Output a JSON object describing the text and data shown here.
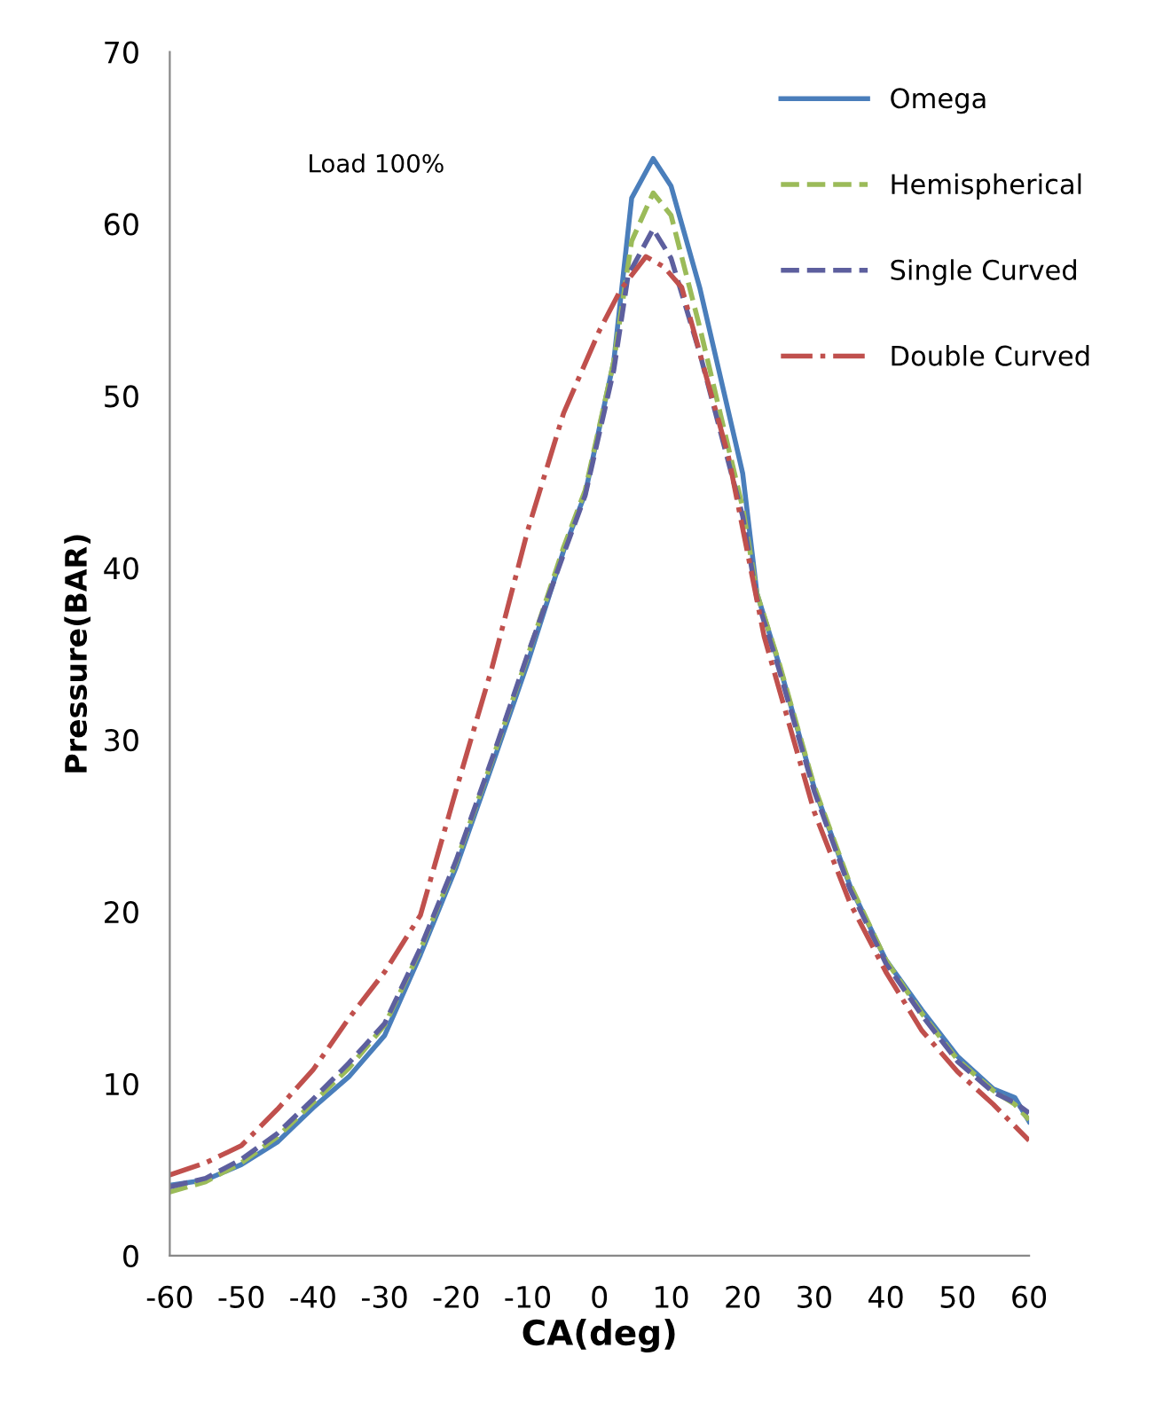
{
  "chart_data": {
    "type": "line",
    "xlabel": "CA(deg)",
    "ylabel": "Pressure(BAR)",
    "annotations": [
      "Load 100%"
    ],
    "xlim": [
      -60,
      60
    ],
    "xticks": [
      -60,
      -50,
      -40,
      -30,
      -20,
      -10,
      0,
      10,
      20,
      30,
      40,
      50,
      60
    ],
    "ylim": [
      0,
      70
    ],
    "yticks": [
      0,
      10,
      20,
      30,
      40,
      50,
      60,
      70
    ],
    "grid": false,
    "legend": "top right",
    "marker": "none",
    "series": [
      {
        "name": "Omega",
        "color": "#4a7ebb",
        "line_style": "solid",
        "x": [
          -60,
          -55,
          -50,
          -45,
          -40,
          -35,
          -30,
          -25,
          -20,
          -15,
          -10,
          -5,
          -2,
          2,
          4.5,
          7.5,
          10,
          14,
          20,
          22,
          25,
          30,
          35,
          40,
          45,
          50,
          55,
          58,
          60
        ],
        "values": [
          4.1,
          4.4,
          5.3,
          6.6,
          8.6,
          10.4,
          12.8,
          17.5,
          22.6,
          28.5,
          34.5,
          41,
          44.3,
          52,
          61.5,
          63.8,
          62.2,
          56.3,
          45.5,
          38.5,
          34.5,
          27.2,
          21.5,
          17.2,
          14.3,
          11.6,
          9.7,
          9.2,
          7.8
        ]
      },
      {
        "name": "Hemispherical",
        "color": "#9bbb59",
        "line_style": "dashed",
        "x": [
          -60,
          -55,
          -50,
          -45,
          -40,
          -35,
          -30,
          -25,
          -20,
          -15,
          -10,
          -5,
          -2,
          2,
          4.5,
          7.5,
          10,
          14,
          20,
          22,
          25,
          30,
          35,
          40,
          45,
          50,
          55,
          58,
          60
        ],
        "values": [
          3.7,
          4.3,
          5.4,
          6.9,
          8.9,
          10.9,
          13.4,
          17.8,
          22.9,
          28.8,
          34.9,
          41.2,
          44.5,
          52,
          59,
          61.8,
          60.5,
          54,
          43.5,
          38.5,
          34.6,
          27.3,
          21.6,
          17.2,
          14.1,
          11.4,
          9.6,
          8.8,
          7.9
        ]
      },
      {
        "name": "Single Curved",
        "color": "#5d5f9e",
        "line_style": "dashed",
        "x": [
          -60,
          -55,
          -50,
          -45,
          -40,
          -35,
          -30,
          -25,
          -20,
          -15,
          -10,
          -5,
          -2,
          2,
          4,
          7.5,
          10,
          14,
          20,
          22,
          25,
          30,
          35,
          40,
          45,
          50,
          55,
          58,
          60
        ],
        "values": [
          4.0,
          4.5,
          5.6,
          7.1,
          9.1,
          11.2,
          13.5,
          17.9,
          23.0,
          28.9,
          35.0,
          40.8,
          44.2,
          51.5,
          57,
          59.7,
          58,
          52.5,
          43,
          38.2,
          34.2,
          27.0,
          21.3,
          17.0,
          14.0,
          11.3,
          9.5,
          8.9,
          8.3
        ]
      },
      {
        "name": "Double Curved",
        "color": "#c0504d",
        "line_style": "dashdot",
        "x": [
          -60,
          -55,
          -50,
          -45,
          -40,
          -35,
          -30,
          -25,
          -20,
          -15,
          -10,
          -5,
          0,
          3,
          6.5,
          9,
          11.5,
          15,
          18,
          23,
          30,
          35,
          40,
          45,
          50,
          55,
          60
        ],
        "values": [
          4.7,
          5.4,
          6.4,
          8.5,
          10.8,
          13.8,
          16.5,
          19.8,
          27.1,
          34.2,
          42.2,
          49,
          53.8,
          56.2,
          58.1,
          57.5,
          56.3,
          51,
          46.5,
          36,
          25.8,
          20.5,
          16.5,
          13.1,
          10.7,
          8.8,
          6.7
        ]
      }
    ]
  }
}
